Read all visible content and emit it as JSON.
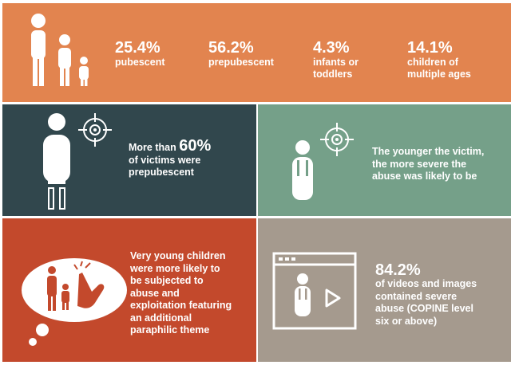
{
  "colors": {
    "orange": "#E2844F",
    "dark_teal": "#31474D",
    "sage_green": "#75A089",
    "red": "#C3492C",
    "taupe": "#A59A8E",
    "white": "#FFFFFF"
  },
  "stats": [
    {
      "value": "25.4%",
      "label_line1": "pubescent",
      "label_line2": ""
    },
    {
      "value": "56.2%",
      "label_line1": "prepubescent",
      "label_line2": ""
    },
    {
      "value": "4.3%",
      "label_line1": "infants or",
      "label_line2": "toddlers"
    },
    {
      "value": "14.1%",
      "label_line1": "children of",
      "label_line2": "multiple ages"
    }
  ],
  "prepubescent_panel": {
    "line1_prefix": "More than ",
    "line1_value": "60%",
    "line2": "of victims were",
    "line3": "prepubescent"
  },
  "severity_panel": {
    "line1": "The younger the victim,",
    "line2": "the more severe the",
    "line3": "abuse was likely to be"
  },
  "paraphilic_panel": {
    "line1": "Very young children",
    "line2": "were more likely to",
    "line3": "be subjected to",
    "line4": "abuse and",
    "line5": "exploitation featuring",
    "line6": "an additional",
    "line7": "paraphilic theme"
  },
  "copine_panel": {
    "value": "84.2%",
    "line1": "of videos and images",
    "line2": "contained severe",
    "line3": "abuse (COPINE level",
    "line4": "six or above)"
  },
  "icons": [
    "family-figures-icon",
    "target-crosshair-icon",
    "adult-figure-icon",
    "child-figure-icon",
    "thought-bubble-icon",
    "hand-icon",
    "video-player-icon",
    "play-icon"
  ]
}
